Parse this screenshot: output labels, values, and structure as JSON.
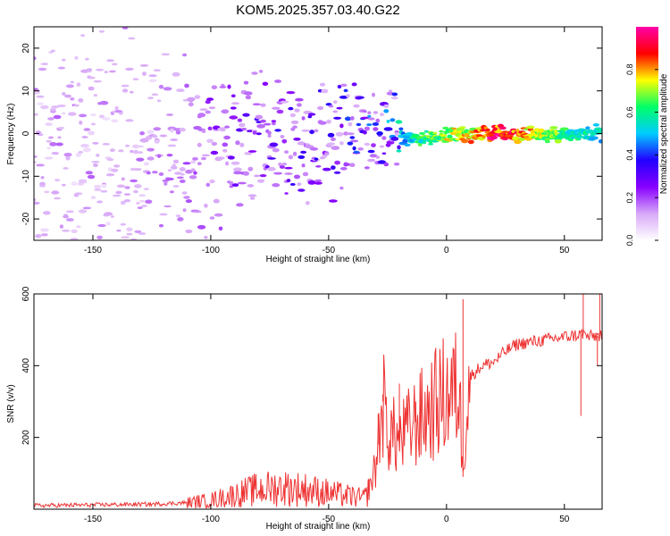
{
  "title": "KOM5.2025.357.03.40.G22",
  "chart_data": [
    {
      "type": "heatmap",
      "title": "KOM5.2025.357.03.40.G22",
      "xlabel": "Height of straight line (km)",
      "ylabel": "Frequency (Hz)",
      "xlim": [
        -175,
        66
      ],
      "ylim": [
        -25,
        25
      ],
      "x_ticks": [
        -150,
        -100,
        -50,
        0,
        50
      ],
      "x_tick_labels": [
        "-150",
        "-100",
        "-50",
        "0",
        "50"
      ],
      "y_ticks": [
        -20,
        -10,
        0,
        10,
        20
      ],
      "y_tick_labels": [
        "-20",
        "-10",
        "0",
        "10",
        "20"
      ],
      "colorbar": {
        "label": "Normalized spectral amplitude",
        "range": [
          0,
          1
        ],
        "ticks": [
          0.0,
          0.2,
          0.4,
          0.6,
          0.8
        ],
        "tick_labels": [
          "0.0",
          "0.2",
          "0.4",
          "0.6",
          "0.8"
        ],
        "colors": [
          "#ffffff",
          "#d8a8f8",
          "#8800ff",
          "#2200ff",
          "#00ccff",
          "#00ff66",
          "#ffff00",
          "#ff0000",
          "#ff00aa"
        ]
      },
      "ridge": {
        "x": [
          -175,
          -150,
          -125,
          -100,
          -75,
          -50,
          -35,
          -25,
          -18,
          -10,
          0,
          10,
          20,
          30,
          40,
          50,
          66
        ],
        "freq_hz": [
          -8,
          -6,
          -5,
          -4,
          -3,
          -1,
          1,
          2,
          -1,
          -1,
          -0.5,
          -0.3,
          0,
          0,
          0,
          0,
          0
        ],
        "amplitude": [
          0.1,
          0.1,
          0.12,
          0.2,
          0.28,
          0.3,
          0.35,
          0.45,
          0.5,
          0.6,
          0.7,
          0.75,
          0.9,
          0.85,
          0.7,
          0.6,
          0.5
        ]
      }
    },
    {
      "type": "line",
      "xlabel": "Height of straight line (km)",
      "ylabel": "SNR (v/v)",
      "xlim": [
        -175,
        66
      ],
      "ylim": [
        0,
        600
      ],
      "x_ticks": [
        -150,
        -100,
        -50,
        0,
        50
      ],
      "x_tick_labels": [
        "-150",
        "-100",
        "-50",
        "0",
        "50"
      ],
      "y_ticks": [
        200,
        400,
        600
      ],
      "y_tick_labels": [
        "200",
        "400",
        "600"
      ],
      "series": [
        {
          "name": "SNR",
          "color": "#ee3333",
          "x": [
            -175,
            -150,
            -125,
            -110,
            -100,
            -90,
            -80,
            -70,
            -60,
            -50,
            -40,
            -35,
            -33,
            -30,
            -27,
            -25,
            -20,
            -15,
            -10,
            -5,
            0,
            5,
            7,
            10,
            15,
            20,
            25,
            30,
            40,
            50,
            55,
            58,
            60,
            66
          ],
          "y": [
            10,
            12,
            14,
            18,
            25,
            40,
            55,
            60,
            55,
            45,
            35,
            30,
            50,
            120,
            300,
            220,
            190,
            230,
            260,
            290,
            320,
            330,
            160,
            370,
            400,
            410,
            440,
            460,
            470,
            480,
            485,
            490,
            480,
            485
          ],
          "spikes": [
            [
              -33,
              85
            ],
            [
              -29,
              265
            ],
            [
              -27,
              320
            ],
            [
              -20,
              350
            ],
            [
              -13,
              300
            ],
            [
              7,
              585
            ],
            [
              7,
              90
            ],
            [
              58,
              600
            ],
            [
              57,
              260
            ],
            [
              65,
              600
            ],
            [
              64,
              400
            ]
          ]
        }
      ]
    }
  ]
}
